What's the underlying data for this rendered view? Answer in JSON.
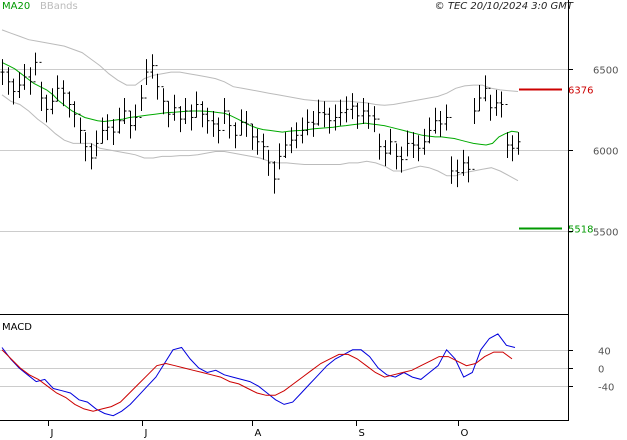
{
  "header": {
    "legend_ma": "MA20",
    "legend_bb": "BBands",
    "copyright": "© TEC 20/10/2024 3:0 GMT"
  },
  "colors": {
    "price_bars": "#000000",
    "ma": "#00aa00",
    "bbands": "#bbbbbb",
    "resistance": "#cc0000",
    "support": "#009900",
    "macd_line": "#0000dd",
    "signal_line": "#cc0000",
    "grid": "#cccccc",
    "axis": "#000000"
  },
  "chart_data": [
    {
      "type": "ohlc",
      "ylim": [
        5000,
        6900
      ],
      "y_ticks": [
        "6500",
        "6000",
        "5500"
      ],
      "x_ticks": [
        "J",
        "J",
        "A",
        "S",
        "O"
      ],
      "close": [
        6480,
        6420,
        6360,
        6400,
        6450,
        6420,
        6540,
        6320,
        6250,
        6300,
        6380,
        6350,
        6280,
        6220,
        6120,
        6020,
        5950,
        6040,
        6120,
        6140,
        6110,
        6180,
        6240,
        6150,
        6200,
        6320,
        6480,
        6520,
        6390,
        6300,
        6220,
        6260,
        6190,
        6240,
        6200,
        6280,
        6220,
        6180,
        6160,
        6120,
        6240,
        6150,
        6090,
        6170,
        6160,
        6080,
        6050,
        6020,
        5920,
        5820,
        5960,
        6030,
        6060,
        6090,
        6120,
        6170,
        6160,
        6230,
        6220,
        6180,
        6200,
        6230,
        6250,
        6270,
        6210,
        6240,
        6210,
        6190,
        6020,
        5980,
        6050,
        5960,
        5940,
        6040,
        6030,
        6010,
        6050,
        6120,
        6180,
        6160,
        6200,
        5870,
        5860,
        5920,
        5880,
        6240,
        6320,
        6380,
        6260,
        6290,
        6280,
        6030,
        6010,
        6050
      ],
      "high": [
        6560,
        6510,
        6440,
        6480,
        6530,
        6510,
        6600,
        6420,
        6340,
        6380,
        6460,
        6430,
        6360,
        6300,
        6200,
        6110,
        6040,
        6120,
        6200,
        6220,
        6190,
        6260,
        6320,
        6240,
        6280,
        6400,
        6560,
        6590,
        6470,
        6380,
        6300,
        6340,
        6270,
        6320,
        6280,
        6360,
        6300,
        6260,
        6240,
        6200,
        6320,
        6230,
        6170,
        6250,
        6240,
        6160,
        6130,
        6100,
        6000,
        5930,
        6040,
        6110,
        6140,
        6170,
        6200,
        6250,
        6240,
        6310,
        6300,
        6260,
        6280,
        6310,
        6330,
        6350,
        6290,
        6320,
        6290,
        6270,
        6100,
        6060,
        6130,
        6040,
        6020,
        6120,
        6110,
        6090,
        6130,
        6200,
        6260,
        6240,
        6280,
        5960,
        5940,
        6000,
        5960,
        6320,
        6400,
        6460,
        6340,
        6370,
        6360,
        6110,
        6090,
        6110
      ],
      "low": [
        6400,
        6340,
        6280,
        6320,
        6370,
        6340,
        6460,
        6240,
        6170,
        6220,
        6300,
        6270,
        6200,
        6140,
        6040,
        5930,
        5880,
        5960,
        6040,
        6060,
        6030,
        6100,
        6160,
        6070,
        6120,
        6240,
        6400,
        6440,
        6310,
        6220,
        6140,
        6180,
        6110,
        6160,
        6120,
        6200,
        6140,
        6100,
        6080,
        6040,
        6160,
        6070,
        6010,
        6090,
        6080,
        6000,
        5970,
        5940,
        5840,
        5730,
        5880,
        5950,
        5980,
        6010,
        6040,
        6090,
        6080,
        6150,
        6140,
        6100,
        6120,
        6150,
        6170,
        6190,
        6130,
        6160,
        6130,
        6110,
        5940,
        5900,
        5970,
        5880,
        5860,
        5960,
        5950,
        5930,
        5970,
        6040,
        6100,
        6080,
        6120,
        5790,
        5770,
        5840,
        5800,
        6160,
        6240,
        6300,
        6180,
        6210,
        6200,
        5950,
        5930,
        5970
      ],
      "ma20": [
        6540,
        6520,
        6500,
        6470,
        6440,
        6410,
        6390,
        6370,
        6340,
        6300,
        6270,
        6240,
        6220,
        6200,
        6190,
        6180,
        6175,
        6180,
        6185,
        6190,
        6200,
        6205,
        6210,
        6215,
        6220,
        6225,
        6230,
        6232,
        6235,
        6238,
        6240,
        6240,
        6238,
        6235,
        6230,
        6225,
        6210,
        6190,
        6170,
        6150,
        6135,
        6125,
        6120,
        6115,
        6110,
        6115,
        6118,
        6120,
        6125,
        6130,
        6133,
        6136,
        6140,
        6146,
        6150,
        6155,
        6160,
        6165,
        6160,
        6155,
        6150,
        6140,
        6130,
        6120,
        6110,
        6100,
        6090,
        6085,
        6080,
        6080,
        6075,
        6070,
        6060,
        6050,
        6040,
        6035,
        6030,
        6040,
        6080,
        6100,
        6115,
        6110
      ],
      "bb_upper": [
        6740,
        6720,
        6700,
        6680,
        6670,
        6660,
        6650,
        6640,
        6620,
        6600,
        6560,
        6520,
        6470,
        6430,
        6400,
        6400,
        6440,
        6460,
        6470,
        6480,
        6480,
        6470,
        6460,
        6450,
        6440,
        6420,
        6390,
        6380,
        6370,
        6360,
        6350,
        6340,
        6330,
        6320,
        6310,
        6305,
        6300,
        6300,
        6300,
        6300,
        6295,
        6290,
        6280,
        6275,
        6280,
        6290,
        6300,
        6310,
        6320,
        6330,
        6350,
        6380,
        6395,
        6400,
        6400,
        6380,
        6370,
        6365,
        6360
      ],
      "bb_lower": [
        6340,
        6300,
        6280,
        6240,
        6190,
        6150,
        6100,
        6060,
        6040,
        6040,
        6040,
        6010,
        6000,
        5990,
        5980,
        5970,
        5950,
        5950,
        5960,
        5960,
        5965,
        5965,
        5970,
        5980,
        5990,
        5990,
        5980,
        5970,
        5960,
        5950,
        5930,
        5920,
        5920,
        5915,
        5910,
        5910,
        5910,
        5910,
        5910,
        5920,
        5920,
        5930,
        5920,
        5900,
        5870,
        5870,
        5885,
        5900,
        5890,
        5870,
        5840,
        5840,
        5860,
        5870,
        5880,
        5890,
        5870,
        5840,
        5810
      ],
      "resistance": {
        "value": 6376,
        "label": "6376"
      },
      "support": {
        "value": 5518,
        "label": "5518"
      }
    },
    {
      "type": "line",
      "title": "MACD",
      "ylim": [
        -110,
        110
      ],
      "y_ticks": [
        "40",
        "0",
        "-40"
      ],
      "series": [
        {
          "values": [
            45,
            20,
            0,
            -15,
            -30,
            -25,
            -45,
            -50,
            -55,
            -70,
            -75,
            -90,
            -100,
            -105,
            -95,
            -80,
            -60,
            -40,
            -20,
            10,
            40,
            45,
            20,
            0,
            -10,
            -5,
            -15,
            -20,
            -25,
            -30,
            -40,
            -55,
            -70,
            -80,
            -75,
            -55,
            -35,
            -15,
            5,
            20,
            30,
            40,
            40,
            25,
            0,
            -15,
            -20,
            -10,
            -20,
            -25,
            -10,
            5,
            40,
            20,
            -20,
            -10,
            40,
            65,
            75,
            50,
            45
          ]
        },
        {
          "values": [
            40,
            20,
            0,
            -15,
            -25,
            -40,
            -55,
            -65,
            -80,
            -90,
            -95,
            -90,
            -85,
            -75,
            -55,
            -35,
            -15,
            5,
            10,
            5,
            0,
            -5,
            -10,
            -15,
            -20,
            -30,
            -35,
            -45,
            -55,
            -60,
            -60,
            -50,
            -35,
            -20,
            -5,
            10,
            20,
            30,
            30,
            20,
            5,
            -10,
            -20,
            -15,
            -10,
            -5,
            5,
            15,
            25,
            25,
            15,
            5,
            10,
            25,
            35,
            35,
            20
          ]
        }
      ]
    }
  ]
}
